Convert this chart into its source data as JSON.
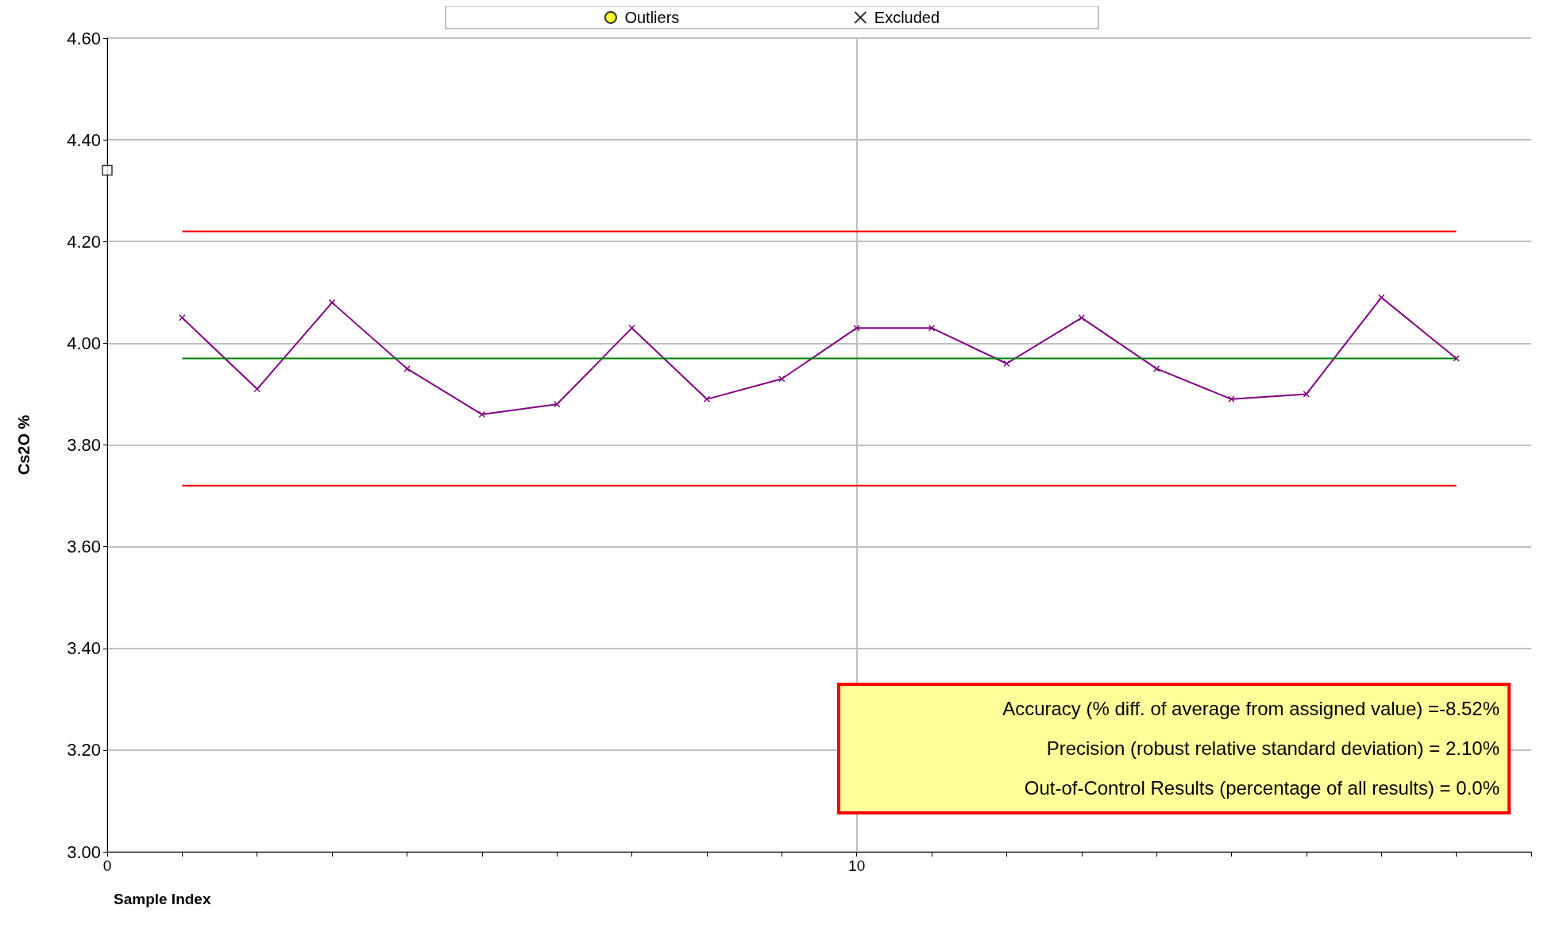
{
  "chart_data": {
    "type": "line",
    "xlabel": "Sample Index",
    "ylabel": "Cs2O %",
    "x": [
      1,
      2,
      3,
      4,
      5,
      6,
      7,
      8,
      9,
      10,
      11,
      12,
      13,
      14,
      15,
      16,
      17,
      18
    ],
    "series": [
      {
        "color": "#800080",
        "marker": "cross",
        "values": [
          4.05,
          3.91,
          4.08,
          3.95,
          3.86,
          3.88,
          4.03,
          3.89,
          3.93,
          4.03,
          4.03,
          3.96,
          4.05,
          3.95,
          3.89,
          3.9,
          4.09,
          3.97
        ]
      },
      {
        "color": "#ff0000",
        "marker": "none",
        "x": [
          1,
          18
        ],
        "values": [
          4.22,
          4.22
        ]
      },
      {
        "color": "#ff0000",
        "marker": "none",
        "x": [
          1,
          18
        ],
        "values": [
          3.72,
          3.72
        ]
      },
      {
        "color": "#008000",
        "marker": "none",
        "x": [
          1,
          18
        ],
        "values": [
          3.97,
          3.97
        ]
      },
      {
        "type": "scatter",
        "color": "#000000",
        "marker": "square",
        "x": [
          0
        ],
        "values": [
          4.34
        ]
      },
      {
        "type": "scatter",
        "name": "Outliers",
        "color": "#ffff00",
        "marker": "circle",
        "values": [
          null,
          null,
          null,
          null,
          null,
          null,
          null,
          null,
          null,
          null,
          null,
          null,
          null,
          null,
          null,
          null,
          null,
          null
        ]
      },
      {
        "type": "scatter",
        "name": "Excluded",
        "color": "#000000",
        "marker": "cross",
        "values": [
          null,
          null,
          null,
          null,
          null,
          null,
          null,
          null,
          null,
          null,
          null,
          null,
          null,
          null,
          null,
          null,
          null,
          null
        ]
      }
    ],
    "xlim": [
      0,
      19
    ],
    "xticks": [
      0,
      {
        "value": 1,
        "label": null
      },
      {
        "value": 2,
        "label": null
      },
      {
        "value": 3,
        "label": null
      },
      {
        "value": 4,
        "label": null
      },
      {
        "value": 5,
        "label": null
      },
      {
        "value": 6,
        "label": null
      },
      {
        "value": 7,
        "label": null
      },
      {
        "value": 8,
        "label": null
      },
      {
        "value": 9,
        "label": null
      },
      10,
      {
        "value": 11,
        "label": null
      },
      {
        "value": 12,
        "label": null
      },
      {
        "value": 13,
        "label": null
      },
      {
        "value": 14,
        "label": null
      },
      {
        "value": 15,
        "label": null
      },
      {
        "value": 16,
        "label": null
      },
      {
        "value": 17,
        "label": null
      },
      {
        "value": 18,
        "label": null
      },
      {
        "value": 19,
        "label": null
      }
    ],
    "ylim": [
      3.0,
      4.6
    ],
    "yticks": [
      {
        "value": 3.0,
        "label": "3.00"
      },
      {
        "value": 3.2,
        "label": "3.20"
      },
      {
        "value": 3.4,
        "label": "3.40"
      },
      {
        "value": 3.6,
        "label": "3.60"
      },
      {
        "value": 3.8,
        "label": "3.80"
      },
      {
        "value": 4.0,
        "label": "4.00"
      },
      {
        "value": 4.2,
        "label": "4.20"
      },
      {
        "value": 4.4,
        "label": "4.40"
      },
      {
        "value": 4.6,
        "label": "4.60"
      }
    ],
    "grid": true,
    "legend": "top",
    "annotations": [
      "Accuracy (% diff. of average from assigned value) =-8.52%",
      "Precision (robust relative standard deviation) = 2.10%",
      "Out-of-Control Results (percentage of all results) = 0.0%"
    ]
  }
}
